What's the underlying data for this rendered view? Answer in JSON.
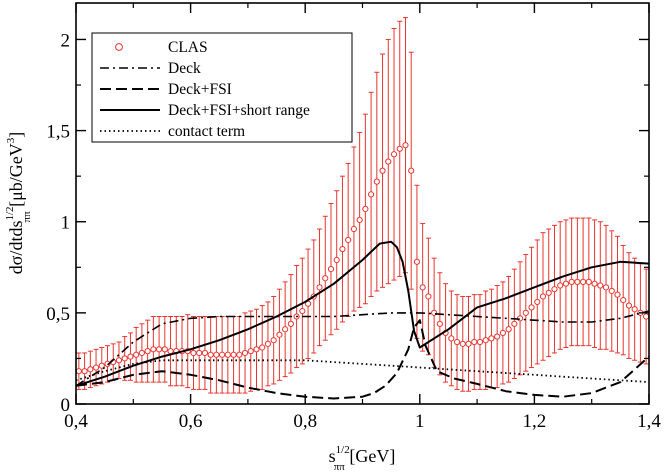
{
  "chart_data": {
    "type": "line",
    "xlabel": "s",
    "xlabel_sup": "1/2",
    "xlabel_sub": "ππ",
    "xlabel_unit": " [GeV]",
    "ylabel": "dσ/dtds",
    "ylabel_sup": "1/2",
    "ylabel_sub": "ππ",
    "ylabel_unit": " [μb/GeV",
    "ylabel_unit_sup": "3",
    "ylabel_unit_end": "]",
    "xlim": [
      0.4,
      1.4
    ],
    "ylim": [
      0,
      2.2
    ],
    "x_ticks": [
      0.4,
      0.6,
      0.8,
      1.0,
      1.2,
      1.4
    ],
    "x_tick_labels": [
      "0,4",
      "0,6",
      "0,8",
      "1",
      "1,2",
      "1,4"
    ],
    "y_ticks": [
      0,
      0.5,
      1.0,
      1.5,
      2.0
    ],
    "y_tick_labels": [
      "0",
      "0,5",
      "1",
      "1,5",
      "2"
    ],
    "grid": false,
    "legend_position": "top-left",
    "colors": {
      "data": "#e8342e",
      "theory": "#000000"
    },
    "series": [
      {
        "name": "CLAS",
        "style": "circles-with-errorbars",
        "x": [
          0.405,
          0.415,
          0.425,
          0.435,
          0.445,
          0.455,
          0.465,
          0.475,
          0.485,
          0.495,
          0.505,
          0.515,
          0.525,
          0.535,
          0.545,
          0.555,
          0.565,
          0.575,
          0.585,
          0.595,
          0.605,
          0.615,
          0.625,
          0.635,
          0.645,
          0.655,
          0.665,
          0.675,
          0.685,
          0.695,
          0.705,
          0.715,
          0.725,
          0.735,
          0.745,
          0.755,
          0.765,
          0.775,
          0.785,
          0.795,
          0.805,
          0.815,
          0.825,
          0.835,
          0.845,
          0.855,
          0.865,
          0.875,
          0.885,
          0.895,
          0.905,
          0.915,
          0.925,
          0.935,
          0.945,
          0.955,
          0.965,
          0.975,
          0.985,
          0.995,
          1.005,
          1.015,
          1.025,
          1.035,
          1.045,
          1.055,
          1.065,
          1.075,
          1.085,
          1.095,
          1.105,
          1.115,
          1.125,
          1.135,
          1.145,
          1.155,
          1.165,
          1.175,
          1.185,
          1.195,
          1.205,
          1.215,
          1.225,
          1.235,
          1.245,
          1.255,
          1.265,
          1.275,
          1.285,
          1.295,
          1.305,
          1.315,
          1.325,
          1.335,
          1.345,
          1.355,
          1.365,
          1.375,
          1.385,
          1.395
        ],
        "y": [
          0.18,
          0.18,
          0.19,
          0.2,
          0.21,
          0.22,
          0.23,
          0.24,
          0.25,
          0.26,
          0.27,
          0.28,
          0.29,
          0.3,
          0.3,
          0.3,
          0.29,
          0.29,
          0.29,
          0.29,
          0.28,
          0.28,
          0.28,
          0.27,
          0.27,
          0.27,
          0.27,
          0.27,
          0.27,
          0.28,
          0.29,
          0.3,
          0.31,
          0.33,
          0.35,
          0.38,
          0.41,
          0.44,
          0.48,
          0.51,
          0.55,
          0.59,
          0.64,
          0.69,
          0.74,
          0.79,
          0.85,
          0.9,
          0.96,
          1.01,
          1.07,
          1.15,
          1.22,
          1.28,
          1.33,
          1.37,
          1.4,
          1.42,
          1.28,
          0.78,
          0.64,
          0.59,
          0.5,
          0.44,
          0.39,
          0.36,
          0.34,
          0.33,
          0.33,
          0.34,
          0.34,
          0.35,
          0.36,
          0.37,
          0.39,
          0.41,
          0.44,
          0.47,
          0.5,
          0.53,
          0.56,
          0.59,
          0.61,
          0.63,
          0.65,
          0.66,
          0.67,
          0.67,
          0.67,
          0.67,
          0.66,
          0.65,
          0.64,
          0.62,
          0.6,
          0.57,
          0.54,
          0.52,
          0.5,
          0.48
        ],
        "yerr": [
          0.1,
          0.1,
          0.1,
          0.1,
          0.1,
          0.1,
          0.1,
          0.1,
          0.12,
          0.13,
          0.15,
          0.16,
          0.17,
          0.18,
          0.18,
          0.18,
          0.19,
          0.19,
          0.19,
          0.2,
          0.2,
          0.2,
          0.2,
          0.21,
          0.21,
          0.21,
          0.21,
          0.21,
          0.21,
          0.22,
          0.22,
          0.22,
          0.23,
          0.23,
          0.24,
          0.25,
          0.26,
          0.27,
          0.28,
          0.29,
          0.3,
          0.31,
          0.32,
          0.34,
          0.36,
          0.38,
          0.4,
          0.42,
          0.45,
          0.48,
          0.52,
          0.56,
          0.6,
          0.64,
          0.67,
          0.69,
          0.7,
          0.7,
          0.65,
          0.42,
          0.35,
          0.32,
          0.3,
          0.28,
          0.27,
          0.26,
          0.26,
          0.26,
          0.26,
          0.26,
          0.26,
          0.27,
          0.27,
          0.28,
          0.28,
          0.29,
          0.3,
          0.31,
          0.32,
          0.33,
          0.34,
          0.35,
          0.35,
          0.35,
          0.35,
          0.35,
          0.35,
          0.35,
          0.35,
          0.35,
          0.35,
          0.35,
          0.34,
          0.33,
          0.32,
          0.3,
          0.29,
          0.28,
          0.27,
          0.26
        ]
      },
      {
        "name": "Deck",
        "style": "dash-dot",
        "x": [
          0.4,
          0.45,
          0.5,
          0.55,
          0.6,
          0.65,
          0.7,
          0.75,
          0.8,
          0.85,
          0.9,
          0.95,
          1.0,
          1.05,
          1.1,
          1.15,
          1.2,
          1.25,
          1.3,
          1.35,
          1.4
        ],
        "y": [
          0.1,
          0.2,
          0.34,
          0.44,
          0.47,
          0.48,
          0.48,
          0.48,
          0.48,
          0.48,
          0.49,
          0.5,
          0.5,
          0.49,
          0.48,
          0.47,
          0.46,
          0.45,
          0.45,
          0.47,
          0.51
        ]
      },
      {
        "name": "Deck+FSI",
        "style": "dashed",
        "x": [
          0.4,
          0.45,
          0.5,
          0.55,
          0.6,
          0.65,
          0.7,
          0.75,
          0.8,
          0.85,
          0.9,
          0.92,
          0.94,
          0.96,
          0.98,
          0.99,
          1.0,
          1.01,
          1.03,
          1.06,
          1.1,
          1.15,
          1.2,
          1.25,
          1.3,
          1.35,
          1.4
        ],
        "y": [
          0.1,
          0.12,
          0.16,
          0.18,
          0.16,
          0.13,
          0.09,
          0.06,
          0.04,
          0.03,
          0.04,
          0.06,
          0.1,
          0.17,
          0.3,
          0.42,
          0.46,
          0.32,
          0.18,
          0.14,
          0.11,
          0.07,
          0.05,
          0.04,
          0.06,
          0.12,
          0.26
        ]
      },
      {
        "name": "Deck+FSI+short range",
        "style": "solid",
        "x": [
          0.4,
          0.45,
          0.5,
          0.55,
          0.6,
          0.65,
          0.7,
          0.75,
          0.8,
          0.85,
          0.9,
          0.93,
          0.95,
          0.96,
          0.97,
          0.98,
          0.99,
          1.0,
          1.05,
          1.1,
          1.15,
          1.2,
          1.25,
          1.3,
          1.35,
          1.4
        ],
        "y": [
          0.1,
          0.15,
          0.21,
          0.26,
          0.3,
          0.35,
          0.41,
          0.48,
          0.56,
          0.66,
          0.79,
          0.88,
          0.89,
          0.86,
          0.78,
          0.62,
          0.4,
          0.31,
          0.41,
          0.53,
          0.58,
          0.64,
          0.7,
          0.75,
          0.78,
          0.77
        ]
      },
      {
        "name": "contact term",
        "style": "dotted",
        "x": [
          0.4,
          0.45,
          0.5,
          0.55,
          0.6,
          0.65,
          0.7,
          0.75,
          0.8,
          0.85,
          0.9,
          0.95,
          1.0,
          1.05,
          1.1,
          1.15,
          1.2,
          1.25,
          1.3,
          1.35,
          1.4
        ],
        "y": [
          0.13,
          0.18,
          0.22,
          0.24,
          0.24,
          0.24,
          0.24,
          0.24,
          0.24,
          0.23,
          0.22,
          0.21,
          0.2,
          0.19,
          0.18,
          0.17,
          0.16,
          0.15,
          0.14,
          0.13,
          0.12
        ]
      }
    ]
  }
}
